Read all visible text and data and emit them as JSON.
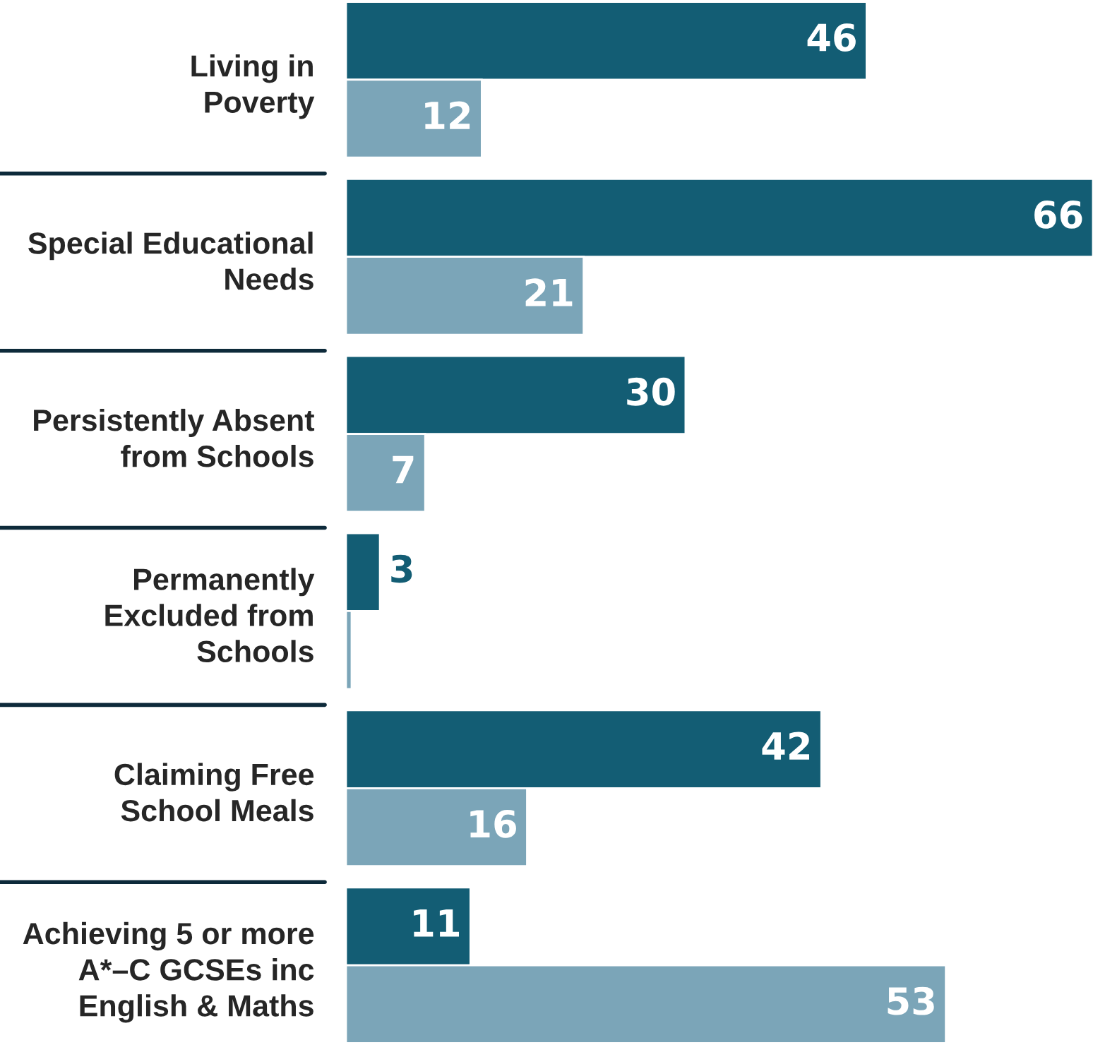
{
  "chart_data": {
    "type": "bar",
    "orientation": "horizontal",
    "categories": [
      "Living in\nPoverty",
      "Special Educational\nNeeds",
      "Persistently Absent\nfrom Schools",
      "Permanently\nExcluded from\nSchools",
      "Claiming Free\nSchool Meals",
      "Achieving 5 or more\nA*–C GCSEs inc\nEnglish & Maths"
    ],
    "series": [
      {
        "color": "#135d74",
        "values": [
          46,
          66,
          30,
          3,
          42,
          11
        ],
        "value_labels": [
          "46",
          "66",
          "30",
          "3",
          "42",
          "11"
        ]
      },
      {
        "color": "#7ba5b8",
        "values": [
          12,
          21,
          7,
          0.5,
          16,
          53
        ],
        "value_labels": [
          "12",
          "21",
          "7",
          null,
          "16",
          "53"
        ]
      }
    ],
    "xlim": [
      0,
      66
    ],
    "tick_labels": "y",
    "grid": false,
    "legend": false
  }
}
